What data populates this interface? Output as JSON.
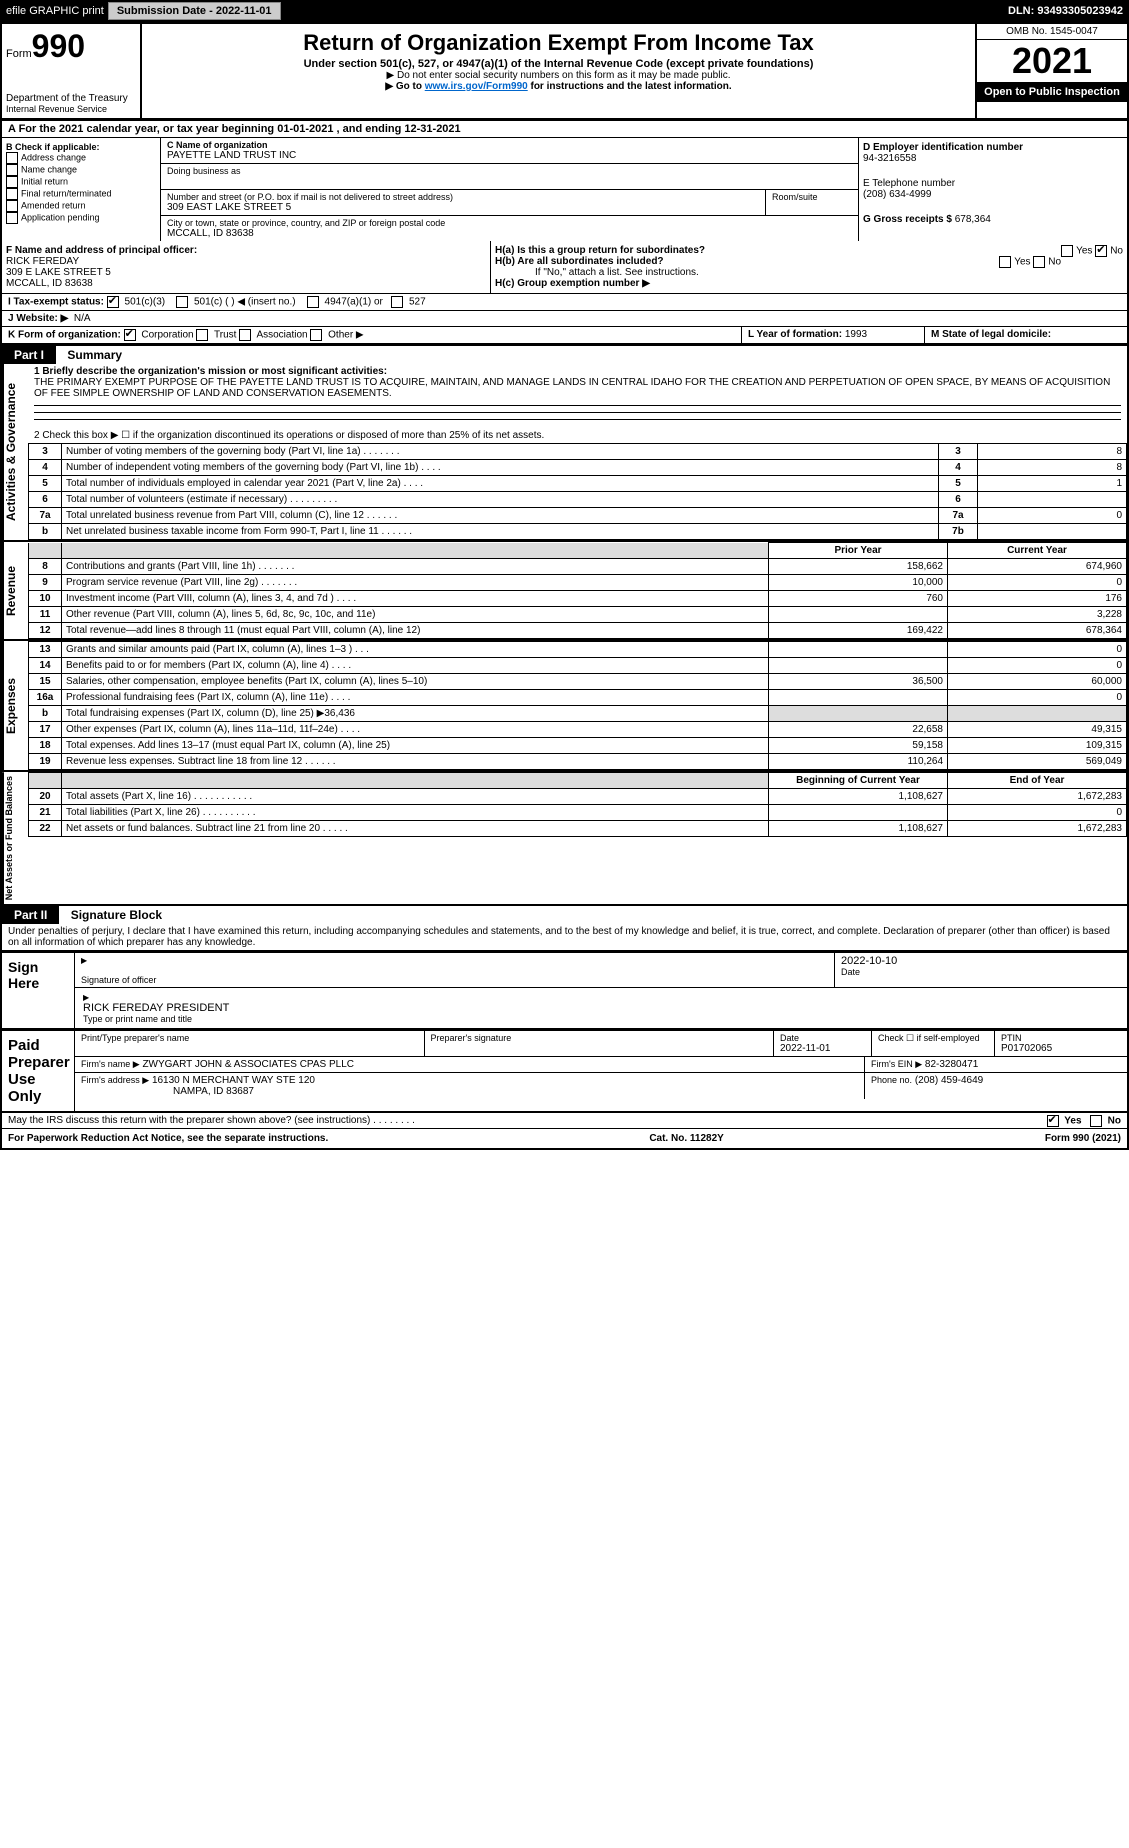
{
  "topbar": {
    "efile_label": "efile GRAPHIC print",
    "submission_label": "Submission Date - 2022-11-01",
    "dln_label": "DLN: 93493305023942"
  },
  "header": {
    "form_word": "Form",
    "form_num": "990",
    "dept": "Department of the Treasury",
    "irs": "Internal Revenue Service",
    "title": "Return of Organization Exempt From Income Tax",
    "sub": "Under section 501(c), 527, or 4947(a)(1) of the Internal Revenue Code (except private foundations)",
    "note1": "▶ Do not enter social security numbers on this form as it may be made public.",
    "note2_pre": "▶ Go to ",
    "note2_link": "www.irs.gov/Form990",
    "note2_post": " for instructions and the latest information.",
    "omb": "OMB No. 1545-0047",
    "year": "2021",
    "open": "Open to Public Inspection"
  },
  "period": {
    "label_a": "A For the 2021 calendar year, or tax year beginning ",
    "begin": "01-01-2021",
    "mid": " , and ending ",
    "end": "12-31-2021"
  },
  "boxB": {
    "title": "B Check if applicable:",
    "items": [
      "Address change",
      "Name change",
      "Initial return",
      "Final return/terminated",
      "Amended return",
      "Application pending"
    ]
  },
  "boxC": {
    "name_label": "C Name of organization",
    "name": "PAYETTE LAND TRUST INC",
    "dba_label": "Doing business as",
    "addr_label": "Number and street (or P.O. box if mail is not delivered to street address)",
    "room_label": "Room/suite",
    "addr": "309 EAST LAKE STREET 5",
    "city_label": "City or town, state or province, country, and ZIP or foreign postal code",
    "city": "MCCALL, ID  83638"
  },
  "boxD": {
    "label": "D Employer identification number",
    "ein": "94-3216558",
    "phone_label": "E Telephone number",
    "phone": "(208) 634-4999",
    "gross_label": "G Gross receipts $",
    "gross": "678,364"
  },
  "boxF": {
    "label": "F Name and address of principal officer:",
    "name": "RICK FEREDAY",
    "addr1": "309 E LAKE STREET 5",
    "addr2": "MCCALL, ID  83638"
  },
  "boxH": {
    "a_label": "H(a)  Is this a group return for subordinates?",
    "a_yes": "Yes",
    "a_no": "No",
    "b_label": "H(b)  Are all subordinates included?",
    "b_note": "If \"No,\" attach a list. See instructions.",
    "c_label": "H(c)  Group exemption number ▶"
  },
  "boxI": {
    "label": "I  Tax-exempt status:",
    "c3": "501(c)(3)",
    "c": "501(c) (   ) ◀ (insert no.)",
    "a1": "4947(a)(1) or",
    "s527": "527"
  },
  "boxJ": {
    "label": "J  Website: ▶",
    "val": "N/A"
  },
  "boxK": {
    "label": "K Form of organization:",
    "corp": "Corporation",
    "trust": "Trust",
    "assoc": "Association",
    "other": "Other ▶"
  },
  "boxL": {
    "label": "L Year of formation:",
    "val": "1993"
  },
  "boxM": {
    "label": "M State of legal domicile:"
  },
  "part1": {
    "num": "Part I",
    "title": "Summary",
    "l1_label": "1  Briefly describe the organization's mission or most significant activities:",
    "l1_text": "THE PRIMARY EXEMPT PURPOSE OF THE PAYETTE LAND TRUST IS TO ACQUIRE, MAINTAIN, AND MANAGE LANDS IN CENTRAL IDAHO FOR THE CREATION AND PERPETUATION OF OPEN SPACE, BY MEANS OF ACQUISITION OF FEE SIMPLE OWNERSHIP OF LAND AND CONSERVATION EASEMENTS.",
    "l2": "2  Check this box ▶ ☐ if the organization discontinued its operations or disposed of more than 25% of its net assets.",
    "rows_ag": [
      {
        "n": "3",
        "t": "Number of voting members of the governing body (Part VI, line 1a)  .    .    .    .    .    .    .",
        "box": "3",
        "v": "8"
      },
      {
        "n": "4",
        "t": "Number of independent voting members of the governing body (Part VI, line 1b)   .    .    .    .",
        "box": "4",
        "v": "8"
      },
      {
        "n": "5",
        "t": "Total number of individuals employed in calendar year 2021 (Part V, line 2a)   .    .    .    .",
        "box": "5",
        "v": "1"
      },
      {
        "n": "6",
        "t": "Total number of volunteers (estimate if necessary)    .    .    .    .    .    .    .    .    .",
        "box": "6",
        "v": ""
      },
      {
        "n": "7a",
        "t": "Total unrelated business revenue from Part VIII, column (C), line 12   .    .    .    .    .    .",
        "box": "7a",
        "v": "0"
      },
      {
        "n": "b",
        "t": "Net unrelated business taxable income from Form 990-T, Part I, line 11   .    .    .    .    .    .",
        "box": "7b",
        "v": ""
      }
    ],
    "hdr_prior": "Prior Year",
    "hdr_current": "Current Year",
    "rows_rev": [
      {
        "n": "8",
        "t": "Contributions and grants (Part VIII, line 1h)   .    .    .    .    .    .    .",
        "p": "158,662",
        "c": "674,960"
      },
      {
        "n": "9",
        "t": "Program service revenue (Part VIII, line 2g)   .    .    .    .    .    .    .",
        "p": "10,000",
        "c": "0"
      },
      {
        "n": "10",
        "t": "Investment income (Part VIII, column (A), lines 3, 4, and 7d )   .    .    .    .",
        "p": "760",
        "c": "176"
      },
      {
        "n": "11",
        "t": "Other revenue (Part VIII, column (A), lines 5, 6d, 8c, 9c, 10c, and 11e)",
        "p": "",
        "c": "3,228"
      },
      {
        "n": "12",
        "t": "Total revenue—add lines 8 through 11 (must equal Part VIII, column (A), line 12)",
        "p": "169,422",
        "c": "678,364"
      }
    ],
    "rows_exp": [
      {
        "n": "13",
        "t": "Grants and similar amounts paid (Part IX, column (A), lines 1–3 )   .    .    .",
        "p": "",
        "c": "0"
      },
      {
        "n": "14",
        "t": "Benefits paid to or for members (Part IX, column (A), line 4)   .    .    .    .",
        "p": "",
        "c": "0"
      },
      {
        "n": "15",
        "t": "Salaries, other compensation, employee benefits (Part IX, column (A), lines 5–10)",
        "p": "36,500",
        "c": "60,000"
      },
      {
        "n": "16a",
        "t": "Professional fundraising fees (Part IX, column (A), line 11e)   .    .    .    .",
        "p": "",
        "c": "0"
      },
      {
        "n": "b",
        "t": "Total fundraising expenses (Part IX, column (D), line 25) ▶36,436",
        "p": "shade",
        "c": "shade"
      },
      {
        "n": "17",
        "t": "Other expenses (Part IX, column (A), lines 11a–11d, 11f–24e)   .    .    .    .",
        "p": "22,658",
        "c": "49,315"
      },
      {
        "n": "18",
        "t": "Total expenses. Add lines 13–17 (must equal Part IX, column (A), line 25)",
        "p": "59,158",
        "c": "109,315"
      },
      {
        "n": "19",
        "t": "Revenue less expenses. Subtract line 18 from line 12   .    .    .    .    .    .",
        "p": "110,264",
        "c": "569,049"
      }
    ],
    "hdr_boy": "Beginning of Current Year",
    "hdr_eoy": "End of Year",
    "rows_net": [
      {
        "n": "20",
        "t": "Total assets (Part X, line 16)   .    .    .    .    .    .    .    .    .    .    .",
        "p": "1,108,627",
        "c": "1,672,283"
      },
      {
        "n": "21",
        "t": "Total liabilities (Part X, line 26)   .    .    .    .    .    .    .    .    .    .",
        "p": "",
        "c": "0"
      },
      {
        "n": "22",
        "t": "Net assets or fund balances. Subtract line 21 from line 20   .    .    .    .    .",
        "p": "1,108,627",
        "c": "1,672,283"
      }
    ],
    "side_ag": "Activities & Governance",
    "side_rev": "Revenue",
    "side_exp": "Expenses",
    "side_net": "Net Assets or Fund Balances"
  },
  "part2": {
    "num": "Part II",
    "title": "Signature Block",
    "pen": "Under penalties of perjury, I declare that I have examined this return, including accompanying schedules and statements, and to the best of my knowledge and belief, it is true, correct, and complete. Declaration of preparer (other than officer) is based on all information of which preparer has any knowledge."
  },
  "sign": {
    "label": "Sign Here",
    "sig_label": "Signature of officer",
    "date_label": "Date",
    "date_val": "2022-10-10",
    "name": "RICK FEREDAY PRESIDENT",
    "name_label": "Type or print name and title"
  },
  "prep": {
    "label": "Paid Preparer Use Only",
    "h1": "Print/Type preparer's name",
    "h2": "Preparer's signature",
    "h3": "Date",
    "h3v": "2022-11-01",
    "h4": "Check ☐ if self-employed",
    "h5": "PTIN",
    "h5v": "P01702065",
    "firm_label": "Firm's name    ▶",
    "firm": "ZWYGART JOHN & ASSOCIATES CPAS PLLC",
    "ein_label": "Firm's EIN ▶",
    "ein": "82-3280471",
    "addr_label": "Firm's address ▶",
    "addr1": "16130 N MERCHANT WAY STE 120",
    "addr2": "NAMPA, ID  83687",
    "phone_label": "Phone no.",
    "phone": "(208) 459-4649"
  },
  "discuss": {
    "q": "May the IRS discuss this return with the preparer shown above? (see instructions)   .    .    .    .    .    .    .    .",
    "yes": "Yes",
    "no": "No"
  },
  "footer": {
    "pra": "For Paperwork Reduction Act Notice, see the separate instructions.",
    "cat": "Cat. No. 11282Y",
    "form": "Form 990 (2021)"
  }
}
